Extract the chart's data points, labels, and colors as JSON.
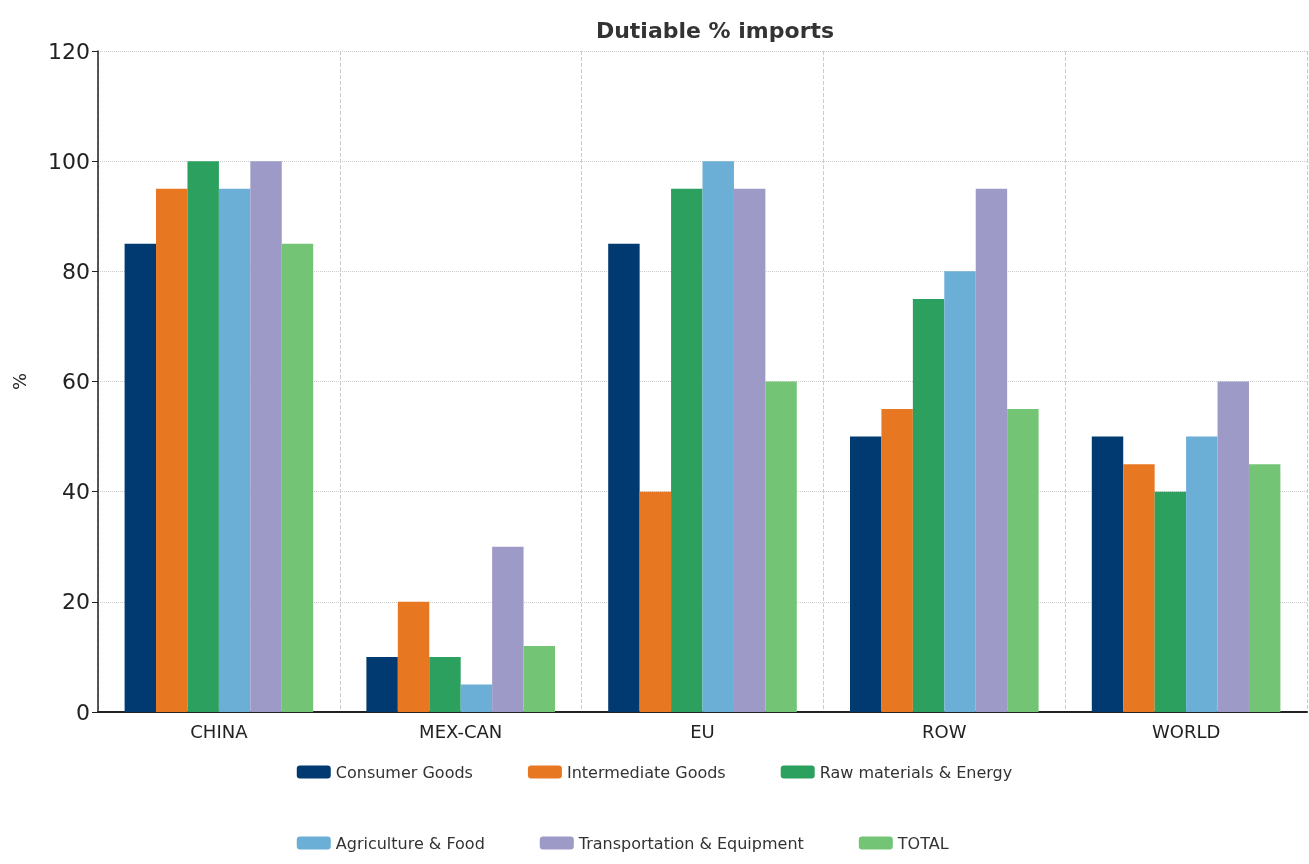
{
  "chart_data": {
    "type": "bar",
    "title": "Dutiable % imports",
    "ylabel": "%",
    "categories": [
      "CHINA",
      "MEX-CAN",
      "EU",
      "ROW",
      "WORLD"
    ],
    "series": [
      {
        "name": "Consumer Goods",
        "color": "#003a70",
        "values": [
          85,
          10,
          85,
          50,
          50
        ]
      },
      {
        "name": "Intermediate Goods",
        "color": "#e87722",
        "values": [
          95,
          20,
          40,
          55,
          45
        ]
      },
      {
        "name": "Raw materials & Energy",
        "color": "#2ca05e",
        "values": [
          100,
          10,
          95,
          75,
          40
        ]
      },
      {
        "name": "Agriculture & Food",
        "color": "#6baed6",
        "values": [
          95,
          5,
          100,
          80,
          50
        ]
      },
      {
        "name": "Transportation & Equipment",
        "color": "#9e9ac8",
        "values": [
          100,
          30,
          95,
          95,
          60
        ]
      },
      {
        "name": "TOTAL",
        "color": "#74c476",
        "values": [
          85,
          12,
          60,
          55,
          45
        ]
      }
    ],
    "ylim": [
      0,
      120
    ],
    "yticks": [
      0,
      20,
      40,
      60,
      80,
      100,
      120
    ],
    "grid": true,
    "legend": "bottom"
  }
}
